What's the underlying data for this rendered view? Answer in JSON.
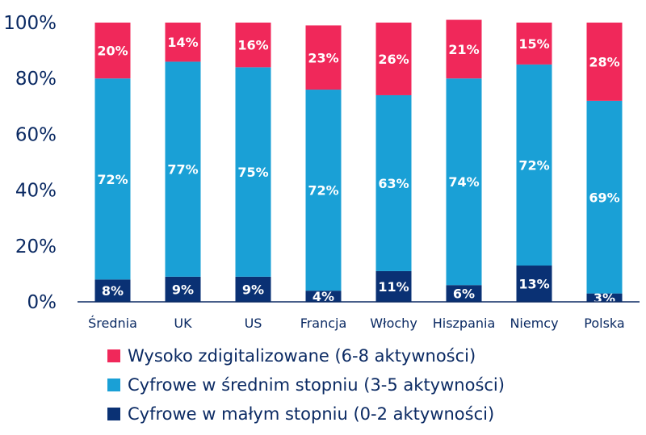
{
  "chart_data": {
    "type": "bar",
    "stacked": true,
    "categories": [
      "Średnia",
      "UK",
      "US",
      "Francja",
      "Włochy",
      "Hiszpania",
      "Niemcy",
      "Polska"
    ],
    "series": [
      {
        "name": "Cyfrowe w małym stopniu (0-2 aktywności)",
        "color": "#0a3174",
        "values": [
          8,
          9,
          9,
          4,
          11,
          6,
          13,
          3
        ],
        "labels": [
          "8%",
          "9%",
          "9%",
          "4%",
          "11%",
          "6%",
          "13%",
          "3%"
        ]
      },
      {
        "name": "Cyfrowe w średnim stopniu (3-5 aktywności)",
        "color": "#1aa0d6",
        "values": [
          72,
          77,
          75,
          72,
          63,
          74,
          72,
          69
        ],
        "labels": [
          "72%",
          "77%",
          "75%",
          "72%",
          "63%",
          "74%",
          "72%",
          "69%"
        ]
      },
      {
        "name": "Wysoko zdigitalizowane (6-8 aktywności)",
        "color": "#f0285a",
        "values": [
          20,
          14,
          16,
          23,
          26,
          21,
          15,
          28
        ],
        "labels": [
          "20%",
          "14%",
          "16%",
          "23%",
          "26%",
          "21%",
          "15%",
          "28%"
        ]
      }
    ],
    "yticks": [
      "0%",
      "20%",
      "40%",
      "60%",
      "80%",
      "100%"
    ],
    "ylim": [
      0,
      100
    ],
    "legend": {
      "position": "bottom",
      "order": [
        "Wysoko zdigitalizowane (6-8 aktywności)",
        "Cyfrowe w średnim stopniu (3-5 aktywności)",
        "Cyfrowe w małym stopniu (0-2 aktywności)"
      ]
    },
    "grid": false
  }
}
